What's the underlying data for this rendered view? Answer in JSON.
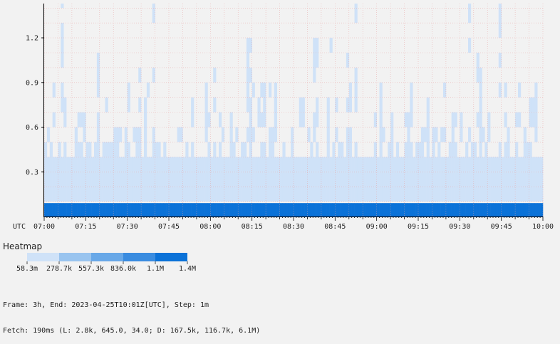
{
  "chart_data": {
    "type": "heatmap",
    "timezone_label": "UTC",
    "x_tick_labels": [
      "07:00",
      "07:15",
      "07:30",
      "07:45",
      "08:00",
      "08:15",
      "08:30",
      "08:45",
      "09:00",
      "09:15",
      "09:30",
      "09:45",
      "10:00"
    ],
    "y_tick_labels": [
      "0.3",
      "0.6",
      "0.9",
      "1.2"
    ],
    "ylim": [
      0,
      1.43
    ],
    "bucket_size": 0.1,
    "step_minutes": 1,
    "minutes": 180,
    "grid": true,
    "peak_minutes": [
      6,
      39,
      112,
      153,
      164
    ],
    "bucket_values_approx": [
      {
        "range": "0.0-0.1",
        "intensity": "highest"
      },
      {
        "range": "0.1-0.4",
        "intensity": "low"
      },
      {
        "range": "0.4-1.43",
        "intensity": "sparse"
      }
    ]
  },
  "legend": {
    "title": "Heatmap",
    "labels": [
      "58.3m",
      "278.7k",
      "557.3k",
      "836.0k",
      "1.1M",
      "1.4M"
    ],
    "colors": [
      "#cfe2f8",
      "#99c4ef",
      "#68a8e8",
      "#3a8ce0",
      "#0b72d8"
    ]
  },
  "footer": {
    "line1": "Frame: 3h, End: 2023-04-25T10:01Z[UTC], Step: 1m",
    "line2": "Fetch: 190ms (L: 2.8k, 645.0, 34.0; D: 167.5k, 116.7k, 6.1M)"
  }
}
